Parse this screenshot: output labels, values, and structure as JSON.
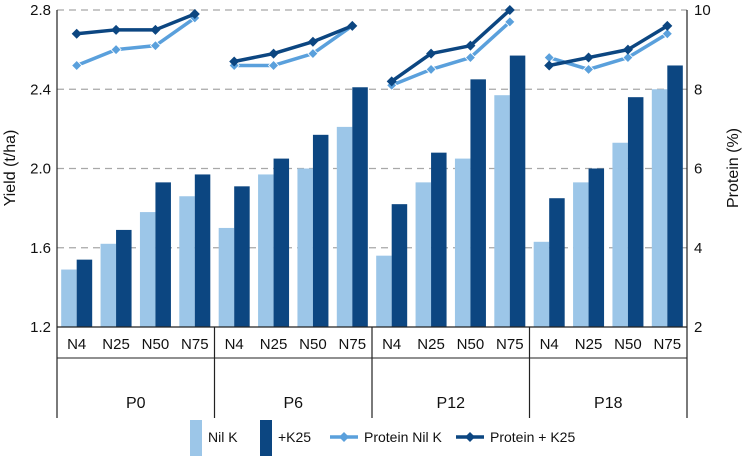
{
  "chart_data": {
    "type": "bar",
    "groups": [
      "P0",
      "P6",
      "P12",
      "P18"
    ],
    "categories": [
      "N4",
      "N25",
      "N50",
      "N75"
    ],
    "ylabel": "Yield (t/ha)",
    "ylim": [
      1.2,
      2.8
    ],
    "yticks": [
      "1.2",
      "1.6",
      "2.0",
      "2.4",
      "2.8"
    ],
    "y2label": "Protein (%)",
    "y2lim": [
      2,
      10
    ],
    "y2ticks": [
      "2",
      "4",
      "6",
      "8",
      "10"
    ],
    "grid": "horizontal dashed",
    "legend_position": "bottom",
    "series": [
      {
        "name": "Nil K",
        "kind": "bar",
        "axis": "left",
        "color": "#9cc6e8",
        "values": [
          [
            1.49,
            1.62,
            1.78,
            1.86
          ],
          [
            1.7,
            1.97,
            2.0,
            2.21
          ],
          [
            1.56,
            1.93,
            2.05,
            2.37
          ],
          [
            1.63,
            1.93,
            2.13,
            2.4
          ]
        ]
      },
      {
        "name": "+K25",
        "kind": "bar",
        "axis": "left",
        "color": "#0c4681",
        "values": [
          [
            1.54,
            1.69,
            1.93,
            1.97
          ],
          [
            1.91,
            2.05,
            2.17,
            2.41
          ],
          [
            1.82,
            2.08,
            2.45,
            2.57
          ],
          [
            1.85,
            2.0,
            2.36,
            2.52
          ]
        ]
      },
      {
        "name": "Protein Nil K",
        "kind": "line",
        "axis": "right",
        "color": "#5aa0dc",
        "values": [
          [
            8.6,
            9.0,
            9.1,
            9.8
          ],
          [
            8.6,
            8.6,
            8.9,
            9.6
          ],
          [
            8.1,
            8.5,
            8.8,
            9.7
          ],
          [
            8.8,
            8.5,
            8.8,
            9.4
          ]
        ]
      },
      {
        "name": "Protein + K25",
        "kind": "line",
        "axis": "right",
        "color": "#0c4681",
        "values": [
          [
            9.4,
            9.5,
            9.5,
            9.9
          ],
          [
            8.7,
            8.9,
            9.2,
            9.6
          ],
          [
            8.2,
            8.9,
            9.1,
            10.0
          ],
          [
            8.6,
            8.8,
            9.0,
            9.6
          ]
        ]
      }
    ]
  }
}
